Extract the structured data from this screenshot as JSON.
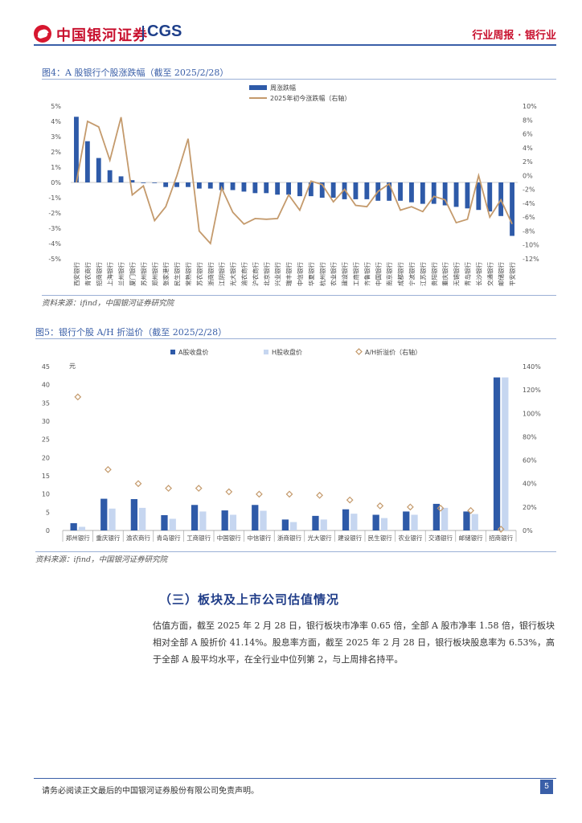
{
  "header": {
    "logo_cn": "中国银河证券",
    "logo_en": "CGS",
    "report_tag": "行业周报 · 银行业"
  },
  "figure4": {
    "title": "图4：A 股银行个股涨跌幅（截至 2025/2/28）",
    "source": "资料来源：ifind，中国银河证券研究院",
    "chart_data": {
      "type": "bar",
      "categories": [
        "西安银行",
        "青农商行",
        "招商银行",
        "上海银行",
        "兰州银行",
        "厦门银行",
        "苏州银行",
        "郑州银行",
        "张家港行",
        "民生银行",
        "常熟银行",
        "苏农银行",
        "浙商银行",
        "江阴银行",
        "光大银行",
        "渝农商行",
        "沪农商行",
        "北京银行",
        "兴业银行",
        "瑞丰银行",
        "中信银行",
        "华夏银行",
        "杭州银行",
        "农业银行",
        "建设银行",
        "工商银行",
        "齐鲁银行",
        "中国银行",
        "南京银行",
        "成都银行",
        "宁波银行",
        "江苏银行",
        "贵阳银行",
        "重庆银行",
        "无锡银行",
        "青岛银行",
        "长沙银行",
        "交通银行",
        "邮储银行",
        "平安银行"
      ],
      "series": [
        {
          "name": "周涨跌幅",
          "axis": "left",
          "values": [
            4.3,
            2.7,
            1.6,
            0.8,
            0.4,
            0.15,
            0.0,
            0.0,
            -0.3,
            -0.3,
            -0.3,
            -0.4,
            -0.4,
            -0.5,
            -0.5,
            -0.6,
            -0.7,
            -0.7,
            -0.8,
            -0.8,
            -0.9,
            -0.9,
            -1.0,
            -1.0,
            -1.1,
            -1.1,
            -1.1,
            -1.2,
            -1.2,
            -1.2,
            -1.3,
            -1.4,
            -1.4,
            -1.5,
            -1.6,
            -1.7,
            -1.8,
            -1.9,
            -2.2,
            -3.5
          ]
        },
        {
          "name": "2025年初今涨跌幅（右轴）",
          "axis": "right",
          "values": [
            -1.0,
            7.8,
            7.0,
            2.2,
            8.4,
            -2.8,
            -1.5,
            -6.5,
            -4.5,
            0.0,
            5.3,
            -8.0,
            -9.8,
            -1.8,
            -5.3,
            -7.0,
            -6.2,
            -6.3,
            -6.2,
            -2.8,
            -5.0,
            -0.8,
            -1.3,
            -3.8,
            -2.0,
            -4.3,
            -4.5,
            -2.3,
            -1.2,
            -5.0,
            -4.5,
            -5.2,
            -3.0,
            -3.5,
            -6.8,
            -6.3,
            0.0,
            -6.0,
            -3.5,
            -7.0
          ]
        }
      ],
      "ylim": [
        -5,
        5
      ],
      "y2lim": [
        -12,
        10
      ],
      "yticks": [
        "5%",
        "4%",
        "3%",
        "2%",
        "1%",
        "0%",
        "-1%",
        "-2%",
        "-3%",
        "-4%",
        "-5%"
      ],
      "y2ticks": [
        "10%",
        "8%",
        "6%",
        "4%",
        "2%",
        "0%",
        "-2%",
        "-4%",
        "-6%",
        "-8%",
        "-10%",
        "-12%"
      ],
      "colors": {
        "bar": "#2e5aa8",
        "line": "#c49a6c"
      },
      "legend_position": "top-center"
    }
  },
  "figure5": {
    "title": "图5：银行个股 A/H 折溢价（截至 2025/2/28）",
    "source": "资料来源：ifind，中国银河证券研究院",
    "unit_label": "元",
    "chart_data": {
      "type": "bar",
      "categories": [
        "郑州银行",
        "重庆银行",
        "渝农商行",
        "青岛银行",
        "工商银行",
        "中国银行",
        "中信银行",
        "浙商银行",
        "光大银行",
        "建设银行",
        "民生银行",
        "农业银行",
        "交通银行",
        "邮储银行",
        "招商银行"
      ],
      "series": [
        {
          "name": "A股收盘价",
          "axis": "left",
          "values": [
            2.0,
            8.7,
            8.6,
            4.2,
            7.0,
            5.5,
            7.0,
            3.0,
            4.0,
            5.8,
            4.3,
            5.2,
            7.3,
            5.2,
            42.0
          ]
        },
        {
          "name": "H股收盘价",
          "axis": "left",
          "values": [
            1.0,
            6.0,
            6.2,
            3.2,
            5.2,
            4.3,
            5.4,
            2.3,
            3.0,
            4.6,
            3.4,
            4.3,
            6.2,
            4.5,
            42.0
          ]
        },
        {
          "name": "A/H折溢价（右轴）",
          "axis": "right",
          "values": [
            114,
            52,
            40,
            36,
            36,
            33,
            31,
            31,
            30,
            26,
            21,
            20,
            19,
            17,
            1
          ]
        }
      ],
      "ylim": [
        0,
        45
      ],
      "y2lim": [
        0,
        140
      ],
      "yticks": [
        "45",
        "40",
        "35",
        "30",
        "25",
        "20",
        "15",
        "10",
        "5",
        "0"
      ],
      "y2ticks": [
        "140%",
        "120%",
        "100%",
        "80%",
        "60%",
        "40%",
        "20%",
        "0%"
      ],
      "colors": {
        "a_bar": "#2e5aa8",
        "h_bar": "#c6d6f0",
        "marker": "#c49a6c"
      },
      "legend_position": "top-center"
    }
  },
  "section": {
    "heading": "（三）板块及上市公司估值情况",
    "paragraph": "估值方面，截至 2025 年 2 月 28 日，银行板块市净率 0.65 倍，全部 A 股市净率 1.58 倍，银行板块相对全部 A 股折价 41.14%。股息率方面，截至 2025 年 2 月 28 日，银行板块股息率为 6.53%，高于全部 A 股平均水平，在全行业中位列第 2，与上周排名持平。"
  },
  "footer": {
    "disclaimer": "请务必阅读正文最后的中国银河证券股份有限公司免责声明。",
    "page": "5"
  }
}
